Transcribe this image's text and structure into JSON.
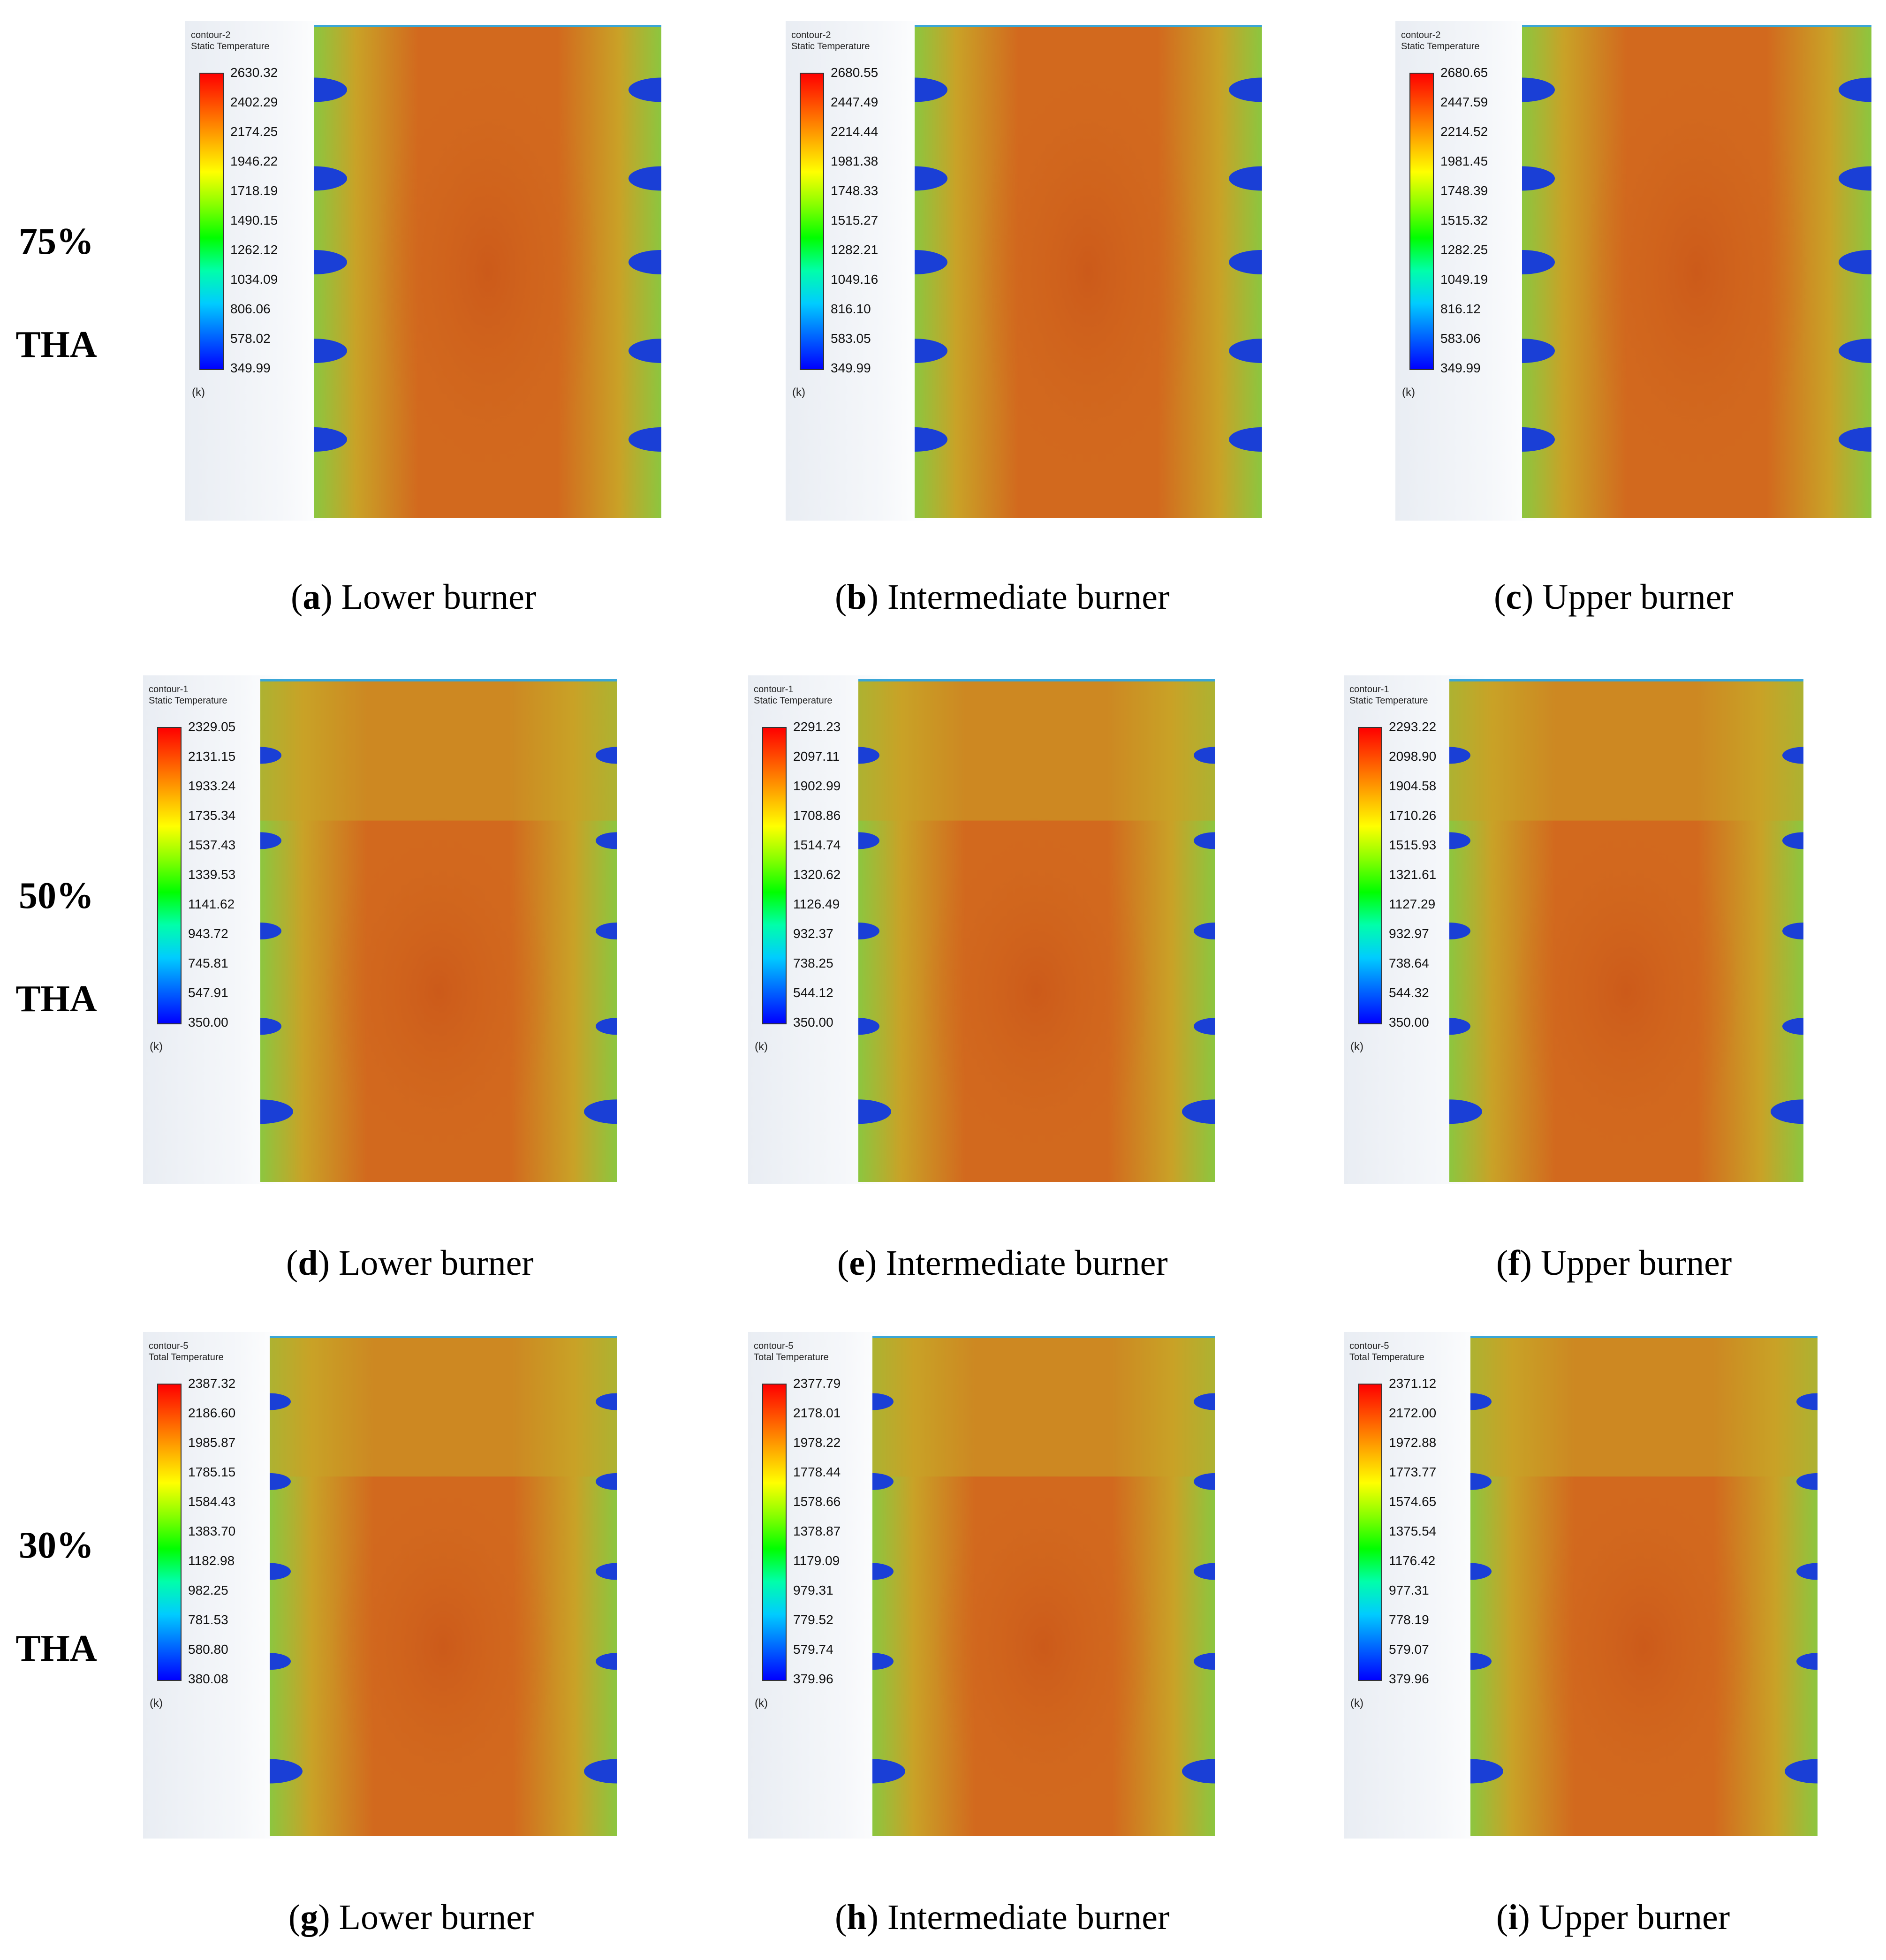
{
  "rows": [
    {
      "label_pct": "75%",
      "label_tha": "THA"
    },
    {
      "label_pct": "50%",
      "label_tha": "THA"
    },
    {
      "label_pct": "30%",
      "label_tha": "THA"
    }
  ],
  "panels": [
    {
      "id": "a",
      "contour": "contour-2",
      "quantity": "Static Temperature",
      "unit": "(k)",
      "ticks": [
        "2630.32",
        "2402.29",
        "2174.25",
        "1946.22",
        "1718.19",
        "1490.15",
        "1262.12",
        "1034.09",
        "806.06",
        "578.02",
        "349.99"
      ],
      "caption_letter": "a",
      "caption_text": "Lower burner"
    },
    {
      "id": "b",
      "contour": "contour-2",
      "quantity": "Static Temperature",
      "unit": "(k)",
      "ticks": [
        "2680.55",
        "2447.49",
        "2214.44",
        "1981.38",
        "1748.33",
        "1515.27",
        "1282.21",
        "1049.16",
        "816.10",
        "583.05",
        "349.99"
      ],
      "caption_letter": "b",
      "caption_text": "Intermediate burner"
    },
    {
      "id": "c",
      "contour": "contour-2",
      "quantity": "Static Temperature",
      "unit": "(k)",
      "ticks": [
        "2680.65",
        "2447.59",
        "2214.52",
        "1981.45",
        "1748.39",
        "1515.32",
        "1282.25",
        "1049.19",
        "816.12",
        "583.06",
        "349.99"
      ],
      "caption_letter": "c",
      "caption_text": "Upper burner"
    },
    {
      "id": "d",
      "contour": "contour-1",
      "quantity": "Static Temperature",
      "unit": "(k)",
      "ticks": [
        "2329.05",
        "2131.15",
        "1933.24",
        "1735.34",
        "1537.43",
        "1339.53",
        "1141.62",
        "943.72",
        "745.81",
        "547.91",
        "350.00"
      ],
      "caption_letter": "d",
      "caption_text": "Lower burner"
    },
    {
      "id": "e",
      "contour": "contour-1",
      "quantity": "Static Temperature",
      "unit": "(k)",
      "ticks": [
        "2291.23",
        "2097.11",
        "1902.99",
        "1708.86",
        "1514.74",
        "1320.62",
        "1126.49",
        "932.37",
        "738.25",
        "544.12",
        "350.00"
      ],
      "caption_letter": "e",
      "caption_text": "Intermediate burner"
    },
    {
      "id": "f",
      "contour": "contour-1",
      "quantity": "Static Temperature",
      "unit": "(k)",
      "ticks": [
        "2293.22",
        "2098.90",
        "1904.58",
        "1710.26",
        "1515.93",
        "1321.61",
        "1127.29",
        "932.97",
        "738.64",
        "544.32",
        "350.00"
      ],
      "caption_letter": "f",
      "caption_text": "Upper burner"
    },
    {
      "id": "g",
      "contour": "contour-5",
      "quantity": "Total Temperature",
      "unit": "(k)",
      "ticks": [
        "2387.32",
        "2186.60",
        "1985.87",
        "1785.15",
        "1584.43",
        "1383.70",
        "1182.98",
        "982.25",
        "781.53",
        "580.80",
        "380.08"
      ],
      "caption_letter": "g",
      "caption_text": "Lower burner"
    },
    {
      "id": "h",
      "contour": "contour-5",
      "quantity": "Total Temperature",
      "unit": "(k)",
      "ticks": [
        "2377.79",
        "2178.01",
        "1978.22",
        "1778.44",
        "1578.66",
        "1378.87",
        "1179.09",
        "979.31",
        "779.52",
        "579.74",
        "379.96"
      ],
      "caption_letter": "h",
      "caption_text": "Intermediate burner"
    },
    {
      "id": "i",
      "contour": "contour-5",
      "quantity": "Total Temperature",
      "unit": "(k)",
      "ticks": [
        "2371.12",
        "2172.00",
        "1972.88",
        "1773.77",
        "1574.65",
        "1375.54",
        "1176.42",
        "977.31",
        "778.19",
        "579.07",
        "379.96"
      ],
      "caption_letter": "i",
      "caption_text": "Upper burner"
    }
  ],
  "colors": {
    "colormap": [
      "#0000ff",
      "#0066ff",
      "#00ccff",
      "#00ffaa",
      "#00ff00",
      "#88ff00",
      "#ffff00",
      "#ffaa00",
      "#ff5500",
      "#ff0000"
    ],
    "furnace_hot": "#d2691e",
    "furnace_core": "#cc5a1a",
    "furnace_warm": "#c9a227",
    "furnace_cool": "#8cc63f",
    "jet": "#1a3fd6",
    "domain_edge": "#3aa6d6"
  }
}
